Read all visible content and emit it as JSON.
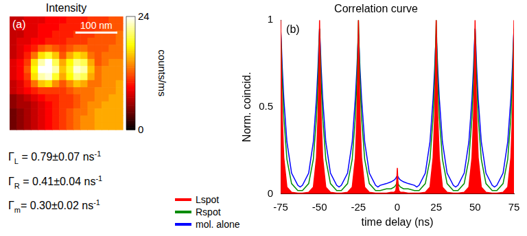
{
  "chart_data": [
    {
      "type": "heatmap",
      "title": "Intensity",
      "panel": "(a)",
      "xlim": [
        0,
        270
      ],
      "ylim": [
        0,
        270
      ],
      "tick_labels": false,
      "cells": [
        [
          7,
          7,
          8,
          8,
          8,
          9,
          9,
          9,
          10,
          10,
          10,
          11,
          11,
          11,
          12,
          12
        ],
        [
          7,
          8,
          8,
          8,
          9,
          9,
          9,
          10,
          10,
          10,
          11,
          11,
          11,
          12,
          12,
          12
        ],
        [
          7,
          7,
          8,
          8,
          9,
          9,
          10,
          10,
          10,
          11,
          11,
          11,
          12,
          12,
          12,
          13
        ],
        [
          7,
          8,
          8,
          9,
          9,
          10,
          10,
          10,
          11,
          11,
          11,
          12,
          12,
          12,
          12,
          13
        ],
        [
          7,
          8,
          9,
          10,
          12,
          13,
          12,
          11,
          12,
          13,
          13,
          12,
          12,
          12,
          13,
          13
        ],
        [
          7,
          8,
          10,
          13,
          17,
          19,
          16,
          12,
          15,
          17,
          16,
          13,
          12,
          13,
          13,
          13
        ],
        [
          8,
          9,
          11,
          17,
          22,
          24,
          20,
          15,
          18,
          21,
          20,
          15,
          12,
          13,
          14,
          14
        ],
        [
          8,
          9,
          12,
          18,
          24,
          24,
          22,
          16,
          19,
          23,
          22,
          16,
          13,
          14,
          14,
          14
        ],
        [
          8,
          9,
          11,
          17,
          22,
          23,
          19,
          15,
          18,
          21,
          20,
          15,
          13,
          14,
          14,
          14
        ],
        [
          7,
          8,
          10,
          13,
          16,
          17,
          14,
          12,
          14,
          16,
          15,
          13,
          13,
          14,
          14,
          15
        ],
        [
          7,
          8,
          9,
          10,
          11,
          11,
          11,
          11,
          12,
          13,
          13,
          13,
          14,
          14,
          14,
          15
        ],
        [
          5,
          6,
          7,
          8,
          9,
          10,
          10,
          11,
          11,
          12,
          13,
          13,
          14,
          14,
          15,
          15
        ],
        [
          5,
          6,
          6,
          7,
          8,
          9,
          10,
          11,
          11,
          12,
          13,
          14,
          14,
          15,
          15,
          15
        ],
        [
          4,
          5,
          6,
          7,
          8,
          9,
          10,
          11,
          12,
          13,
          13,
          14,
          15,
          15,
          15,
          15
        ],
        [
          4,
          5,
          6,
          7,
          8,
          9,
          10,
          11,
          12,
          13,
          14,
          14,
          15,
          15,
          15,
          15
        ],
        [
          4,
          5,
          6,
          7,
          8,
          9,
          10,
          11,
          12,
          13,
          14,
          14,
          15,
          15,
          15,
          15
        ]
      ],
      "colorbar": {
        "label": "counts/ms",
        "range": [
          0,
          24
        ],
        "ticks": [
          0,
          24
        ]
      },
      "scale_bar": {
        "label": "100 nm",
        "length": 100
      },
      "annotations": [
        {
          "symbol": "Γ",
          "subscript": "L",
          "text": " = 0.79±0.07 ns",
          "superscript": "-1"
        },
        {
          "symbol": "Γ",
          "subscript": "R",
          "text": " = 0.41±0.04 ns",
          "superscript": "-1"
        },
        {
          "symbol": "Γ",
          "subscript": "m",
          "text": "= 0.30±0.02 ns",
          "superscript": "-1"
        }
      ]
    },
    {
      "type": "line",
      "title": "Correlation curve",
      "panel": "(b)",
      "x_label": "time delay (ns)",
      "y_label": "Norm. coincid.",
      "xlim": [
        -75,
        75
      ],
      "xticks": [
        -75,
        -50,
        -25,
        0,
        25,
        50,
        75
      ],
      "ylim": [
        0,
        1
      ],
      "yticks": [
        0,
        0.5,
        1
      ],
      "grid": false,
      "legend": "left",
      "x": [
        -75,
        -74.5,
        -74,
        -73,
        -71,
        -68,
        -64,
        -62.5,
        -61,
        -57,
        -54,
        -52,
        -51,
        -50.5,
        -50,
        -49.5,
        -49,
        -48,
        -46,
        -43,
        -39,
        -37.5,
        -36,
        -32,
        -29,
        -27,
        -26,
        -25.5,
        -25,
        -24.5,
        -24,
        -23,
        -21,
        -18,
        -14,
        -12.5,
        -11,
        -7,
        -4,
        -2,
        -1,
        -0.5,
        0,
        0.5,
        1,
        2,
        4,
        7,
        11,
        12.5,
        14,
        18,
        21,
        23,
        24,
        24.5,
        25,
        25.5,
        26,
        27,
        29,
        32,
        36,
        37.5,
        39,
        43,
        46,
        48,
        49,
        49.5,
        50,
        50.5,
        51,
        52,
        54,
        57,
        61,
        62.5,
        64,
        68,
        71,
        73,
        74,
        74.5,
        75
      ],
      "series": [
        {
          "name": "Lspot",
          "color": "#ff0000",
          "type": "area",
          "values": [
            1,
            0.67,
            0.45,
            0.21,
            0.04,
            0.01,
            0.005,
            0.005,
            0.005,
            0.01,
            0.04,
            0.21,
            0.45,
            0.67,
            1,
            0.67,
            0.45,
            0.21,
            0.04,
            0.01,
            0.005,
            0.005,
            0.005,
            0.01,
            0.04,
            0.21,
            0.45,
            0.67,
            1,
            0.67,
            0.45,
            0.21,
            0.04,
            0.01,
            0.005,
            0.005,
            0.005,
            0.005,
            0.01,
            0.01,
            0.02,
            0.05,
            0.15,
            0.05,
            0.02,
            0.01,
            0.01,
            0.005,
            0.005,
            0.005,
            0.005,
            0.01,
            0.04,
            0.21,
            0.45,
            0.67,
            1,
            0.67,
            0.45,
            0.21,
            0.04,
            0.01,
            0.005,
            0.005,
            0.005,
            0.01,
            0.04,
            0.21,
            0.45,
            0.67,
            1,
            0.67,
            0.45,
            0.21,
            0.04,
            0.01,
            0.005,
            0.005,
            0.005,
            0.01,
            0.04,
            0.21,
            0.45,
            0.67,
            1
          ]
        },
        {
          "name": "Rspot",
          "color": "#008c00",
          "type": "line",
          "values": [
            0.95,
            0.8,
            0.65,
            0.44,
            0.2,
            0.06,
            0.02,
            0.02,
            0.02,
            0.06,
            0.2,
            0.44,
            0.65,
            0.8,
            0.95,
            0.8,
            0.65,
            0.44,
            0.2,
            0.06,
            0.02,
            0.02,
            0.02,
            0.06,
            0.2,
            0.44,
            0.65,
            0.82,
            1,
            0.82,
            0.65,
            0.44,
            0.2,
            0.06,
            0.02,
            0.02,
            0.02,
            0.03,
            0.03,
            0.04,
            0.05,
            0.06,
            0.08,
            0.06,
            0.05,
            0.04,
            0.03,
            0.03,
            0.02,
            0.02,
            0.02,
            0.06,
            0.2,
            0.44,
            0.65,
            0.82,
            1,
            0.82,
            0.65,
            0.44,
            0.2,
            0.06,
            0.02,
            0.02,
            0.02,
            0.06,
            0.2,
            0.44,
            0.65,
            0.8,
            0.95,
            0.8,
            0.65,
            0.44,
            0.2,
            0.06,
            0.02,
            0.02,
            0.02,
            0.06,
            0.2,
            0.44,
            0.65,
            0.8,
            0.95
          ]
        },
        {
          "name": "mol. alone",
          "color": "#0000ff",
          "type": "line",
          "values": [
            0.95,
            0.85,
            0.73,
            0.55,
            0.3,
            0.12,
            0.05,
            0.04,
            0.05,
            0.12,
            0.3,
            0.55,
            0.73,
            0.85,
            0.95,
            0.85,
            0.73,
            0.55,
            0.3,
            0.12,
            0.05,
            0.04,
            0.05,
            0.12,
            0.3,
            0.55,
            0.72,
            0.83,
            0.92,
            0.83,
            0.72,
            0.55,
            0.3,
            0.12,
            0.05,
            0.04,
            0.05,
            0.06,
            0.07,
            0.08,
            0.09,
            0.1,
            0.1,
            0.1,
            0.09,
            0.08,
            0.07,
            0.06,
            0.05,
            0.04,
            0.05,
            0.12,
            0.3,
            0.55,
            0.72,
            0.83,
            0.92,
            0.83,
            0.72,
            0.55,
            0.3,
            0.12,
            0.05,
            0.04,
            0.05,
            0.12,
            0.3,
            0.55,
            0.73,
            0.85,
            0.95,
            0.85,
            0.73,
            0.55,
            0.3,
            0.12,
            0.05,
            0.04,
            0.05,
            0.12,
            0.3,
            0.55,
            0.73,
            0.85,
            0.95
          ]
        }
      ]
    }
  ]
}
